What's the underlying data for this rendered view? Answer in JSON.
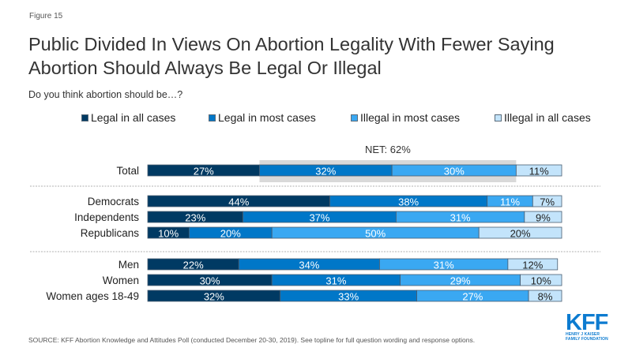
{
  "figure_label": "Figure 15",
  "title_line1": "Public Divided In Views On Abortion Legality With Fewer Saying",
  "title_line2": "Abortion Should Always Be Legal Or Illegal",
  "subtitle": "Do you think abortion should be…?",
  "source": "SOURCE: KFF Abortion Knowledge and Attitudes Poll (conducted December 20-30, 2019). See topline for full question wording and response options.",
  "logo": {
    "mark": "KFF",
    "line1": "HENRY J KAISER",
    "line2": "FAMILY FOUNDATION"
  },
  "chart_data": {
    "type": "bar",
    "orientation": "horizontal",
    "stacked": true,
    "title": "Public Divided In Views On Abortion Legality With Fewer Saying Abortion Should Always Be Legal Or Illegal",
    "subtitle": "Do you think abortion should be…?",
    "xlabel": "",
    "ylabel": "",
    "xlim": [
      0,
      100
    ],
    "grid": false,
    "legend_position": "top",
    "categories": [
      "Total",
      "Democrats",
      "Independents",
      "Republicans",
      "Men",
      "Women",
      "Women ages 18-49"
    ],
    "groups": [
      [
        "Total"
      ],
      [
        "Democrats",
        "Independents",
        "Republicans"
      ],
      [
        "Men",
        "Women",
        "Women ages 18-49"
      ]
    ],
    "series": [
      {
        "name": "Legal in all cases",
        "color": "#003a63",
        "label_color": "#ffffff",
        "values": [
          27,
          44,
          23,
          10,
          22,
          30,
          32
        ]
      },
      {
        "name": "Legal in most cases",
        "color": "#0077c8",
        "label_color": "#ffffff",
        "values": [
          32,
          38,
          37,
          20,
          34,
          31,
          33
        ]
      },
      {
        "name": "Illegal in most cases",
        "color": "#3aa8f2",
        "label_color": "#ffffff",
        "values": [
          30,
          11,
          31,
          50,
          31,
          29,
          27
        ]
      },
      {
        "name": "Illegal in all cases",
        "color": "#c3e4fb",
        "label_color": "#222222",
        "values": [
          11,
          7,
          9,
          20,
          12,
          10,
          8
        ]
      }
    ],
    "annotations": [
      {
        "text": "NET: 62%",
        "category": "Total",
        "series": [
          "Legal in most cases",
          "Illegal in most cases"
        ],
        "highlight_color": "#d9d9d9"
      }
    ]
  }
}
